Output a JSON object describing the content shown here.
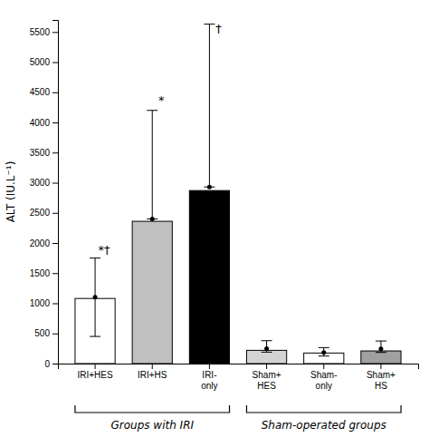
{
  "chart_data": {
    "type": "bar",
    "categories": [
      "IRI+HES",
      "IRI+HS",
      "IRI-\nonly",
      "Sham+\nHES",
      "Sham-\nonly",
      "Sham+\nHS"
    ],
    "values": [
      1080,
      2360,
      2870,
      220,
      175,
      210
    ],
    "colors": [
      "#ffffff",
      "#c0c0c0",
      "#000000",
      "#d3d3d3",
      "#ffffff",
      "#a0a0a0"
    ],
    "dots": [
      1100,
      2400,
      2930,
      250,
      185,
      245
    ],
    "error_upper": [
      650,
      1800,
      2700,
      130,
      80,
      130
    ],
    "error_lower": [
      650,
      0,
      0,
      60,
      60,
      60
    ],
    "annotations": [
      {
        "text": "*†",
        "category": "IRI+HES",
        "y": 1820
      },
      {
        "text": "*",
        "category": "IRI+HS",
        "y": 4300
      },
      {
        "text": "†",
        "category": "IRI-\nonly",
        "y": 5490
      }
    ],
    "groups": [
      {
        "label": "Groups with IRI",
        "categories": [
          "IRI+HES",
          "IRI+HS",
          "IRI-\nonly"
        ]
      },
      {
        "label": "Sham-operated groups",
        "categories": [
          "Sham+\nHES",
          "Sham-\nonly",
          "Sham+\nHS"
        ]
      }
    ],
    "ylabel": "ALT (IU.L⁻¹)",
    "ylim": [
      0,
      5700
    ],
    "yticks": [
      0,
      500,
      1000,
      1500,
      2000,
      2500,
      3000,
      3500,
      4000,
      4500,
      5000,
      5500
    ],
    "grid": false
  }
}
